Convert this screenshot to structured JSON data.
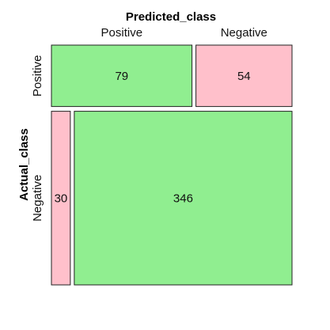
{
  "chart_data": {
    "type": "mosaic",
    "col_title": "Predicted_class",
    "row_title": "Actual_class",
    "col_levels": [
      "Positive",
      "Negative"
    ],
    "row_levels": [
      "Positive",
      "Negative"
    ],
    "cells": [
      {
        "actual": "Positive",
        "predicted": "Positive",
        "value": 79,
        "label": "79",
        "color": "#90ee90"
      },
      {
        "actual": "Positive",
        "predicted": "Negative",
        "value": 54,
        "label": "54",
        "color": "#ffc0cb"
      },
      {
        "actual": "Negative",
        "predicted": "Positive",
        "value": 30,
        "label": "30",
        "color": "#ffc0cb"
      },
      {
        "actual": "Negative",
        "predicted": "Negative",
        "value": 346,
        "label": "346",
        "color": "#90ee90"
      }
    ]
  }
}
